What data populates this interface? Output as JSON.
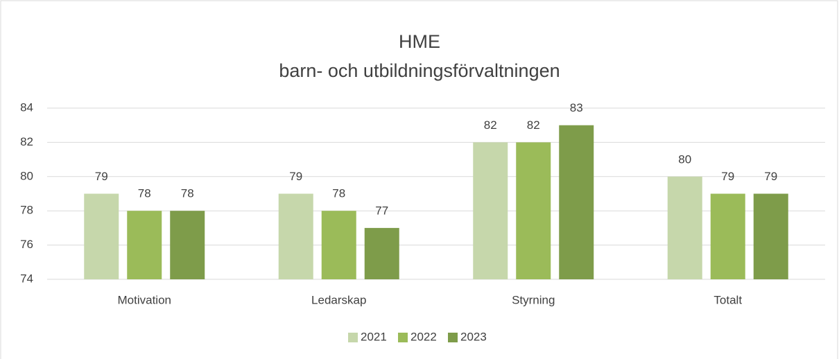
{
  "chart_data": {
    "type": "bar",
    "title": "HME",
    "subtitle": "barn- och utbildningsförvaltningen",
    "categories": [
      "Motivation",
      "Ledarskap",
      "Styrning",
      "Totalt"
    ],
    "series": [
      {
        "name": "2021",
        "color": "#c6d7ab",
        "values": [
          79,
          79,
          82,
          80
        ]
      },
      {
        "name": "2022",
        "color": "#9bbb59",
        "values": [
          78,
          78,
          82,
          79
        ]
      },
      {
        "name": "2023",
        "color": "#7e9c4a",
        "values": [
          78,
          77,
          83,
          79
        ]
      }
    ],
    "ylim": [
      74,
      84
    ],
    "yticks": [
      74,
      76,
      78,
      80,
      82,
      84
    ],
    "grid": true,
    "legend": "bottom"
  }
}
